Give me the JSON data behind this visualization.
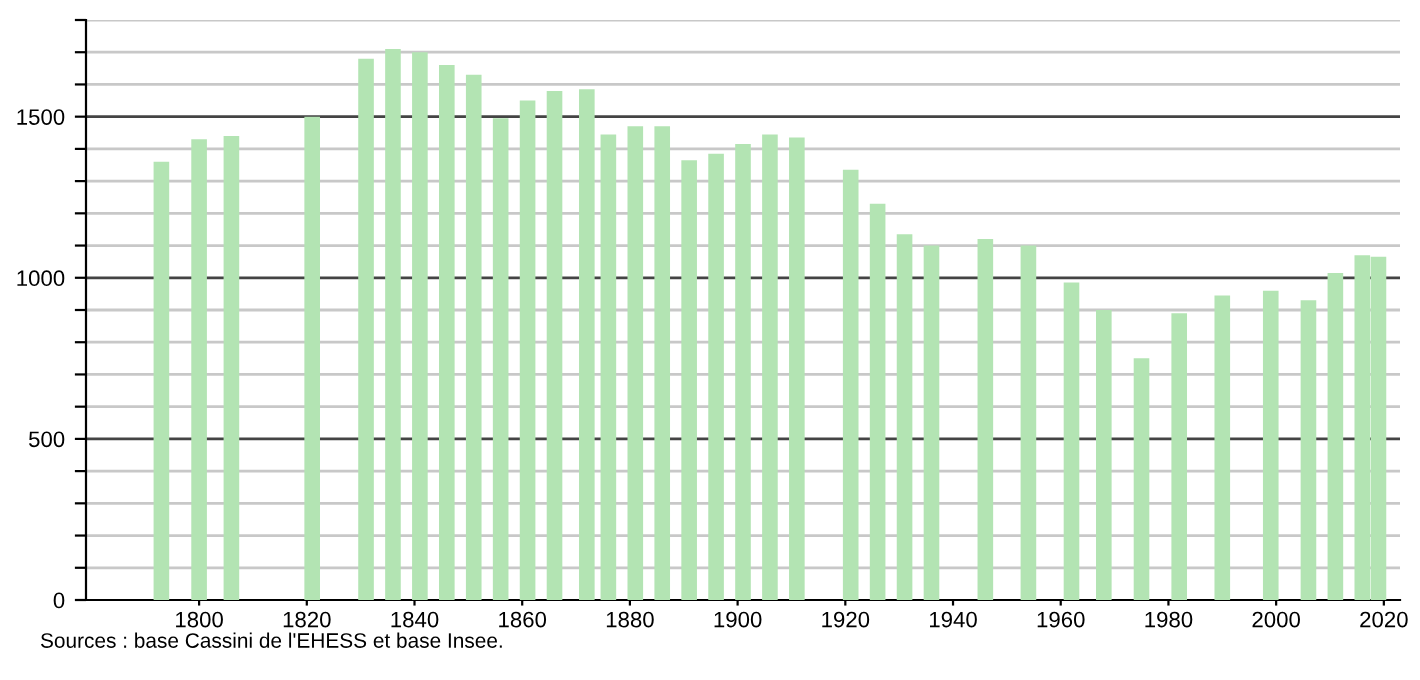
{
  "chart_data": {
    "type": "bar",
    "color": "#b3e4b3",
    "x": [
      1793,
      1800,
      1806,
      1821,
      1831,
      1836,
      1841,
      1846,
      1851,
      1856,
      1861,
      1866,
      1872,
      1876,
      1881,
      1886,
      1891,
      1896,
      1901,
      1906,
      1911,
      1921,
      1926,
      1931,
      1936,
      1946,
      1954,
      1962,
      1968,
      1975,
      1982,
      1990,
      1999,
      2006,
      2011,
      2016,
      2019
    ],
    "values": [
      1360,
      1430,
      1440,
      1500,
      1680,
      1710,
      1700,
      1660,
      1630,
      1495,
      1550,
      1580,
      1585,
      1445,
      1470,
      1470,
      1365,
      1385,
      1415,
      1445,
      1435,
      1335,
      1230,
      1135,
      1100,
      1120,
      1100,
      985,
      900,
      750,
      890,
      945,
      960,
      930,
      1015,
      1070,
      1065
    ],
    "xlim": [
      1779,
      2023
    ],
    "xticks": [
      1800,
      1820,
      1840,
      1860,
      1880,
      1900,
      1920,
      1940,
      1960,
      1980,
      2000,
      2020
    ],
    "ylim": [
      0,
      1800
    ],
    "yticks": [
      0,
      {
        "value": 100,
        "label": null
      },
      {
        "value": 200,
        "label": null
      },
      {
        "value": 300,
        "label": null
      },
      {
        "value": 400,
        "label": null
      },
      500,
      {
        "value": 600,
        "label": null
      },
      {
        "value": 700,
        "label": null
      },
      {
        "value": 800,
        "label": null
      },
      {
        "value": 900,
        "label": null
      },
      1000,
      {
        "value": 1100,
        "label": null
      },
      {
        "value": 1200,
        "label": null
      },
      {
        "value": 1300,
        "label": null
      },
      {
        "value": 1400,
        "label": null
      },
      1500,
      {
        "value": 1600,
        "label": null
      },
      {
        "value": 1700,
        "label": null
      },
      {
        "value": 1800,
        "label": null
      }
    ],
    "grid": "y",
    "annotations": [
      "Sources : base Cassini de l'EHESS et base Insee."
    ]
  }
}
